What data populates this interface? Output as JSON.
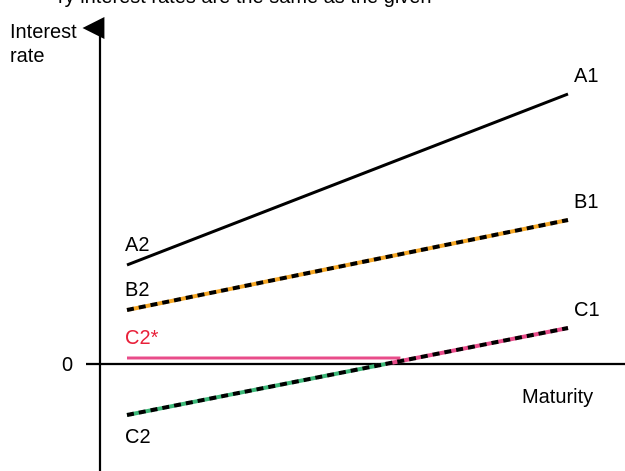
{
  "caption_fragment": "ry interest rates are the same as the given",
  "chart_data": {
    "type": "line",
    "title": "",
    "xlabel": "Maturity",
    "ylabel": "Interest rate",
    "zero_label": "0",
    "ylim": [
      -0.55,
      1.0
    ],
    "xlim": [
      0,
      1
    ],
    "grid": false,
    "series": [
      {
        "name": "A",
        "start_label": "A2",
        "end_label": "A1",
        "x": [
          0,
          1
        ],
        "y": [
          0.33,
          0.9
        ],
        "style": "solid",
        "colors": [
          "#000000"
        ]
      },
      {
        "name": "B",
        "start_label": "B2",
        "end_label": "B1",
        "x": [
          0,
          1
        ],
        "y": [
          0.18,
          0.48
        ],
        "style": "dashed",
        "colors": [
          "#000000",
          "#f5a623"
        ]
      },
      {
        "name": "C",
        "start_label": "C2",
        "end_label": "C1",
        "x": [
          0,
          1
        ],
        "y": [
          -0.17,
          0.12
        ],
        "style": "dashed",
        "colors": [
          "#000000",
          "#3cb878"
        ],
        "upper_segment_colors": [
          "#000000",
          "#e84c8a"
        ],
        "split_at_zero": true
      },
      {
        "name": "C*",
        "start_label": "C2*",
        "end_label": "",
        "x": [
          0,
          0.62
        ],
        "y": [
          0.02,
          0.02
        ],
        "style": "solid",
        "colors": [
          "#e84c8a"
        ],
        "label_color": "#e8213a"
      }
    ]
  }
}
